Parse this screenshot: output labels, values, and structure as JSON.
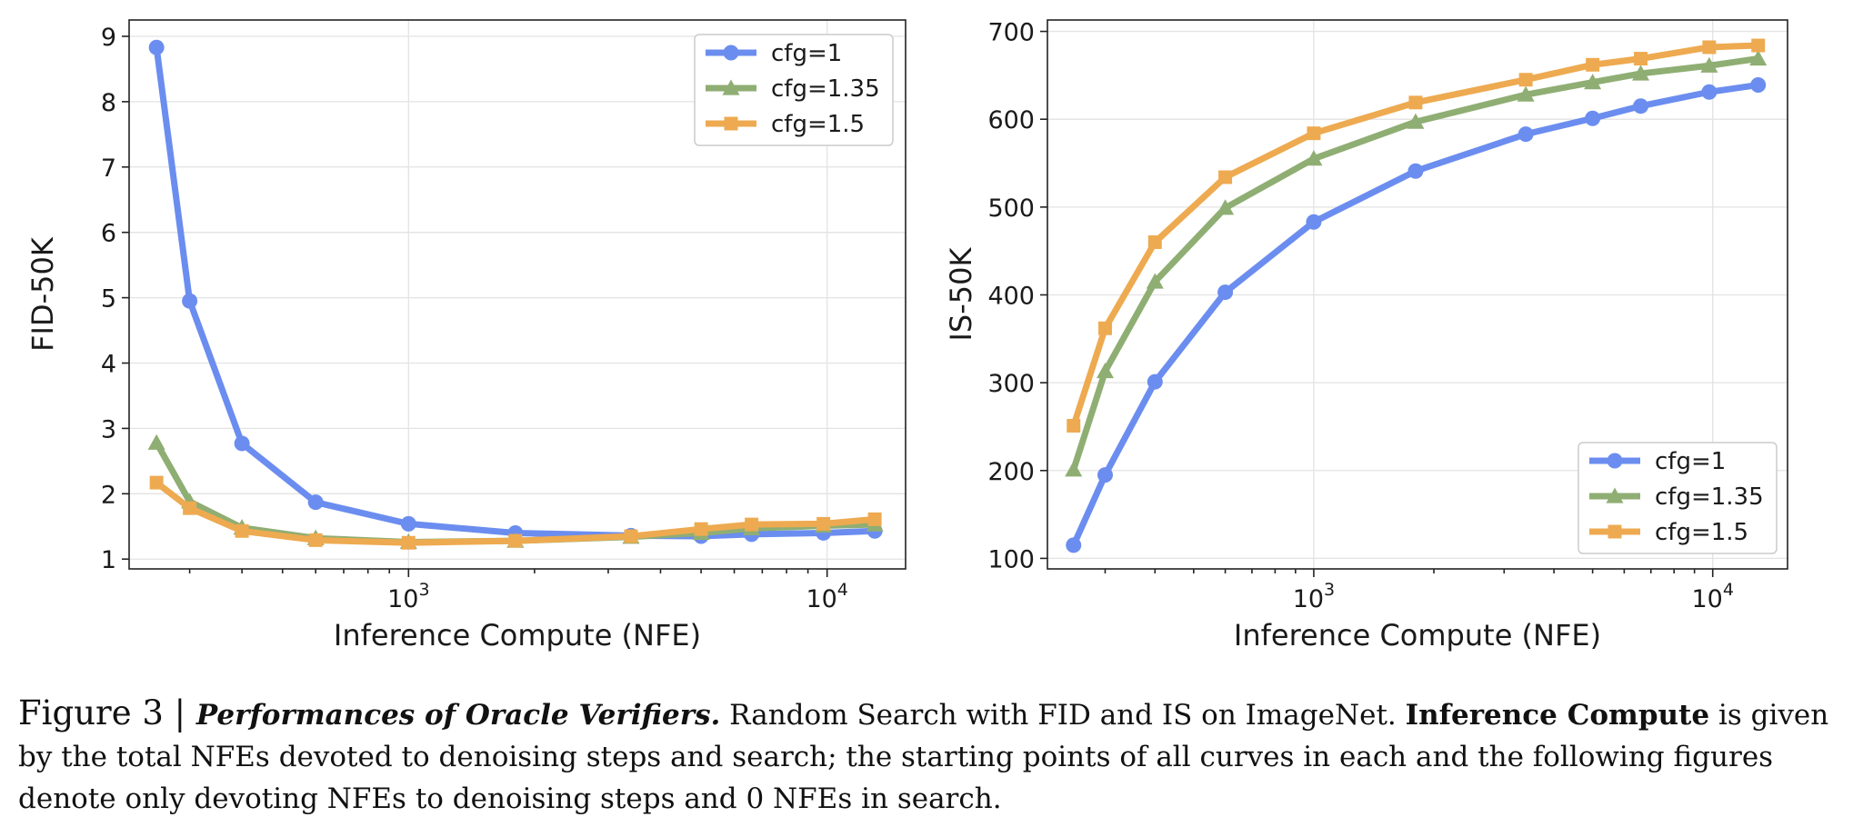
{
  "chart_data": [
    {
      "type": "line",
      "xscale": "log",
      "xlabel": "Inference Compute (NFE)",
      "ylabel": "FID-50K",
      "xlim": [
        215,
        15400
      ],
      "ylim": [
        0.85,
        9.25
      ],
      "yticks": [
        1,
        2,
        3,
        4,
        5,
        6,
        7,
        8,
        9
      ],
      "xticks": [
        {
          "value": 1000,
          "base": "10",
          "exp": "3"
        },
        {
          "value": 10000,
          "base": "10",
          "exp": "4"
        }
      ],
      "grid": true,
      "legend_position": "top-right",
      "series": [
        {
          "name": "cfg=1",
          "color": "#6b8def",
          "marker": "circle",
          "x": [
            250,
            300,
            400,
            600,
            1000,
            1800,
            3400,
            5000,
            6600,
            9800,
            13000
          ],
          "y": [
            8.83,
            4.95,
            2.77,
            1.87,
            1.54,
            1.4,
            1.36,
            1.35,
            1.38,
            1.4,
            1.43
          ]
        },
        {
          "name": "cfg=1.35",
          "color": "#8fae73",
          "marker": "triangle",
          "x": [
            250,
            300,
            400,
            600,
            1000,
            1800,
            3400,
            5000,
            6600,
            9800,
            13000
          ],
          "y": [
            2.78,
            1.88,
            1.48,
            1.32,
            1.26,
            1.28,
            1.34,
            1.4,
            1.47,
            1.51,
            1.53
          ]
        },
        {
          "name": "cfg=1.5",
          "color": "#eeaa50",
          "marker": "square",
          "x": [
            250,
            300,
            400,
            600,
            1000,
            1800,
            3400,
            5000,
            6600,
            9800,
            13000
          ],
          "y": [
            2.17,
            1.78,
            1.43,
            1.29,
            1.25,
            1.28,
            1.35,
            1.46,
            1.53,
            1.54,
            1.61
          ]
        }
      ]
    },
    {
      "type": "line",
      "xscale": "log",
      "xlabel": "Inference Compute (NFE)",
      "ylabel": "IS-50K",
      "xlim": [
        215,
        15400
      ],
      "ylim": [
        88,
        713
      ],
      "yticks": [
        100,
        200,
        300,
        400,
        500,
        600,
        700
      ],
      "xticks": [
        {
          "value": 1000,
          "base": "10",
          "exp": "3"
        },
        {
          "value": 10000,
          "base": "10",
          "exp": "4"
        }
      ],
      "grid": true,
      "legend_position": "bottom-right",
      "series": [
        {
          "name": "cfg=1",
          "color": "#6b8def",
          "marker": "circle",
          "x": [
            250,
            300,
            400,
            600,
            1000,
            1800,
            3400,
            5000,
            6600,
            9800,
            13000
          ],
          "y": [
            115,
            195,
            301,
            403,
            483,
            541,
            583,
            601,
            615,
            631,
            639
          ]
        },
        {
          "name": "cfg=1.35",
          "color": "#8fae73",
          "marker": "triangle",
          "x": [
            250,
            300,
            400,
            600,
            1000,
            1800,
            3400,
            5000,
            6600,
            9800,
            13000
          ],
          "y": [
            201,
            313,
            415,
            499,
            555,
            597,
            628,
            642,
            652,
            661,
            669
          ]
        },
        {
          "name": "cfg=1.5",
          "color": "#eeaa50",
          "marker": "square",
          "x": [
            250,
            300,
            400,
            600,
            1000,
            1800,
            3400,
            5000,
            6600,
            9800,
            13000
          ],
          "y": [
            251,
            362,
            460,
            534,
            584,
            619,
            645,
            662,
            669,
            682,
            684
          ]
        }
      ]
    }
  ],
  "caption": {
    "label": "Figure 3 | ",
    "title": "Performances of Oracle Verifiers.",
    "text1": " Random Search with FID and IS on ImageNet. ",
    "bold2": "Inference Compute",
    "text2": " is given by the total NFEs devoted to denoising steps and search; the starting points of all curves in each and the following figures denote only devoting NFEs to denoising steps and 0 NFEs in search."
  }
}
